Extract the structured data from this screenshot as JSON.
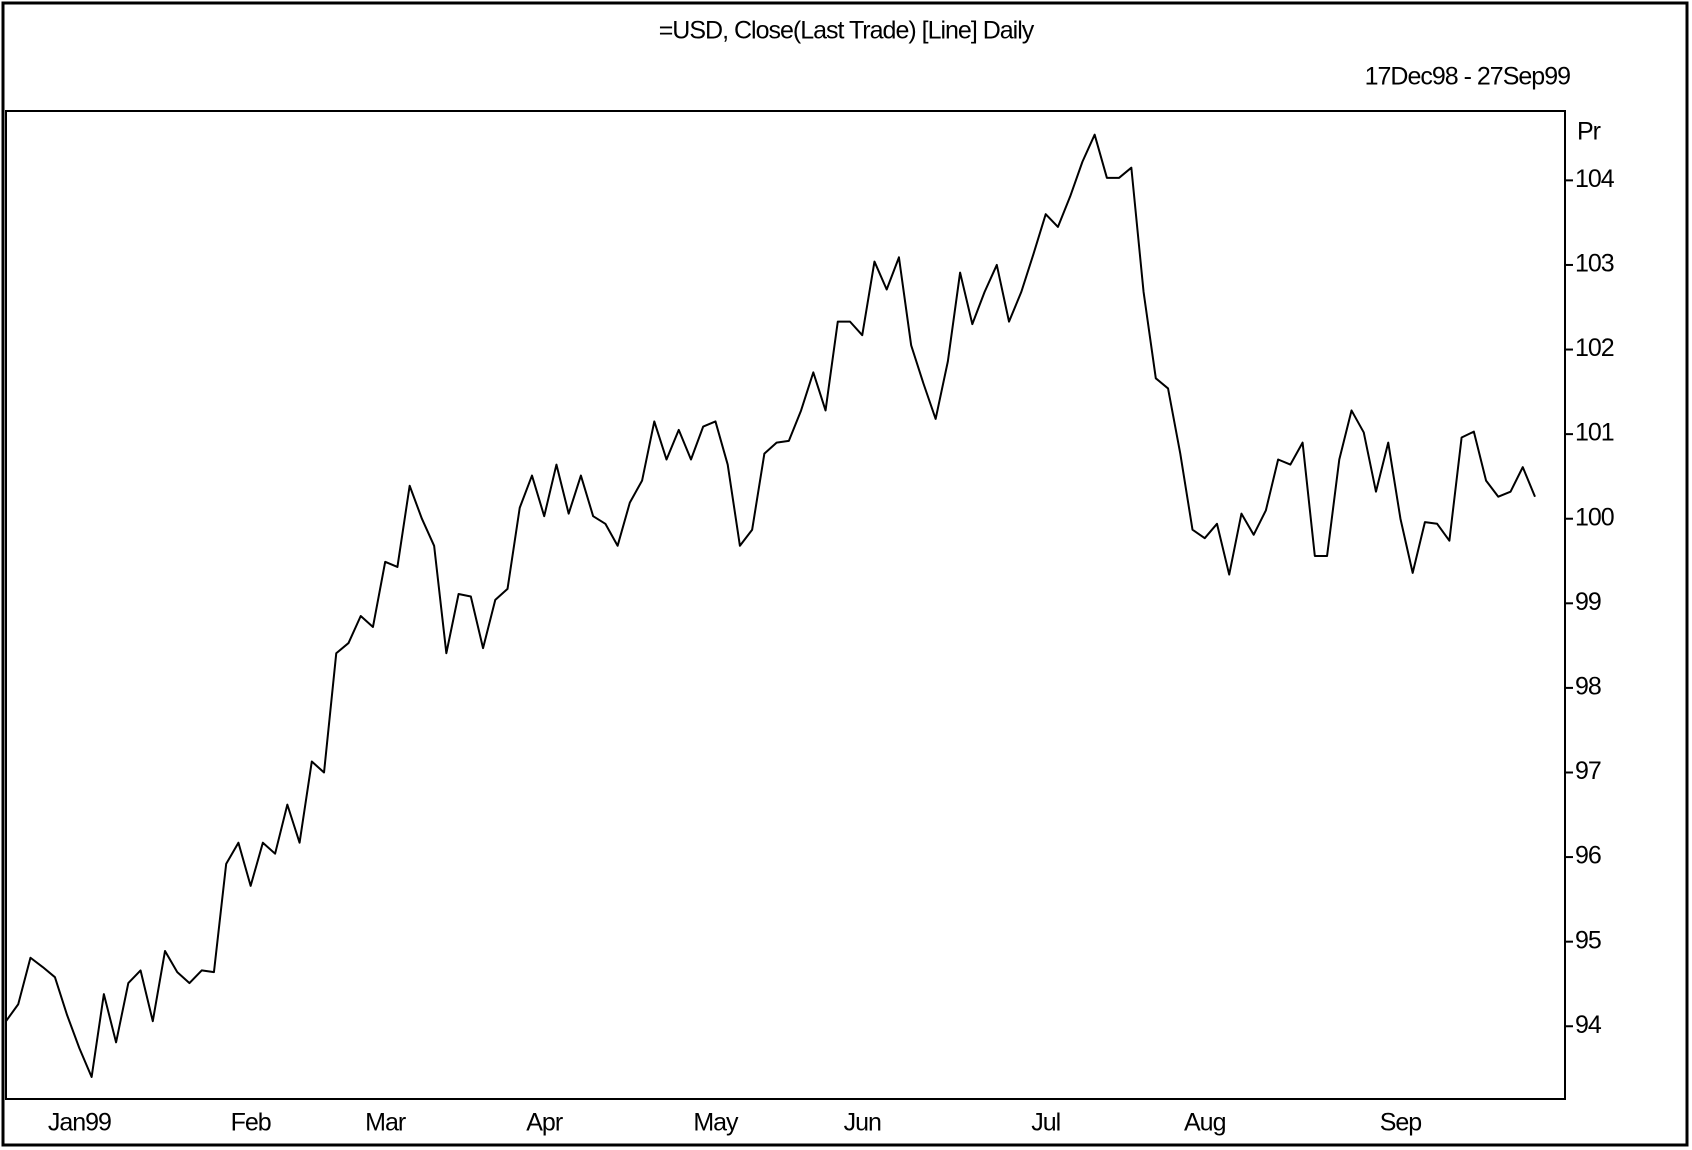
{
  "chart_data": {
    "type": "line",
    "title": "=USD, Close(Last Trade) [Line] Daily",
    "subtitle": "17Dec98 - 27Sep99",
    "y_axis_label": "Pr",
    "color": "#000000",
    "grid": false,
    "categories": [
      null,
      null,
      null,
      null,
      null,
      null,
      "Jan99",
      null,
      null,
      null,
      null,
      null,
      null,
      null,
      null,
      null,
      null,
      null,
      null,
      null,
      "Feb",
      null,
      null,
      null,
      null,
      null,
      null,
      null,
      null,
      null,
      null,
      "Mar",
      null,
      null,
      null,
      null,
      null,
      null,
      null,
      null,
      null,
      null,
      null,
      null,
      "Apr",
      null,
      null,
      null,
      null,
      null,
      null,
      null,
      null,
      null,
      null,
      null,
      null,
      null,
      "May",
      null,
      null,
      null,
      null,
      null,
      null,
      null,
      null,
      null,
      null,
      null,
      "Jun",
      null,
      null,
      null,
      null,
      null,
      null,
      null,
      null,
      null,
      null,
      null,
      null,
      null,
      null,
      "Jul",
      null,
      null,
      null,
      null,
      null,
      null,
      null,
      null,
      null,
      null,
      null,
      null,
      "Aug",
      null,
      null,
      null,
      null,
      null,
      null,
      null,
      null,
      null,
      null,
      null,
      null,
      null,
      null,
      null,
      "Sep",
      null,
      null,
      null,
      null,
      null,
      null,
      null,
      null,
      null,
      null,
      null
    ],
    "values": [
      94.06,
      94.26,
      94.81,
      94.7,
      94.58,
      94.13,
      93.74,
      93.4,
      94.38,
      93.81,
      94.51,
      94.66,
      94.06,
      94.89,
      94.64,
      94.51,
      94.66,
      94.64,
      95.92,
      96.17,
      95.66,
      96.17,
      96.04,
      96.62,
      96.17,
      97.13,
      97.0,
      98.41,
      98.53,
      98.85,
      98.72,
      99.49,
      99.43,
      100.39,
      100.0,
      99.68,
      98.41,
      99.11,
      99.08,
      98.47,
      99.04,
      99.17,
      100.13,
      100.51,
      100.03,
      100.64,
      100.06,
      100.51,
      100.03,
      99.94,
      99.68,
      100.19,
      100.45,
      101.15,
      100.7,
      101.05,
      100.7,
      101.09,
      101.15,
      100.64,
      99.68,
      99.87,
      100.77,
      100.9,
      100.92,
      101.28,
      101.73,
      101.28,
      102.33,
      102.33,
      102.17,
      103.04,
      102.71,
      103.09,
      102.05,
      101.6,
      101.18,
      101.86,
      102.91,
      102.3,
      102.68,
      103.0,
      102.33,
      102.68,
      103.13,
      103.6,
      103.45,
      103.81,
      104.22,
      104.54,
      104.03,
      104.03,
      104.15,
      102.68,
      101.66,
      101.54,
      100.77,
      99.87,
      99.77,
      99.94,
      99.34,
      100.06,
      99.81,
      100.1,
      100.7,
      100.64,
      100.9,
      99.56,
      99.56,
      100.7,
      101.28,
      101.02,
      100.32,
      100.9,
      100.0,
      99.36,
      99.96,
      99.94,
      99.74,
      100.96,
      101.03,
      100.45,
      100.26,
      100.32,
      100.61,
      100.26
    ],
    "ylim": [
      93.14,
      104.82
    ],
    "yticks": [
      94,
      95,
      96,
      97,
      98,
      99,
      100,
      101,
      102,
      103,
      104
    ]
  }
}
